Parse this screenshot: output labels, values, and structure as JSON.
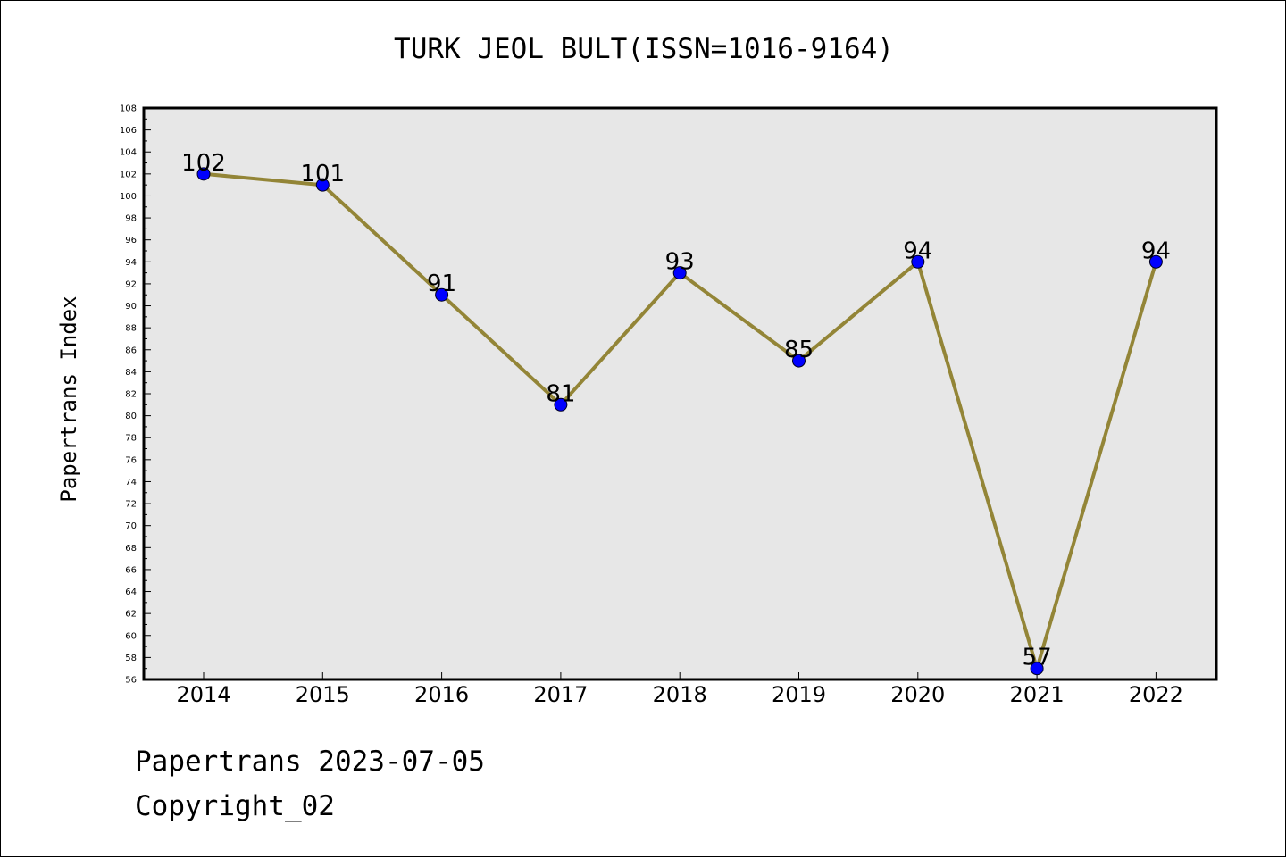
{
  "chart_data": {
    "type": "line",
    "title": "TURK JEOL BULT(ISSN=1016-9164)",
    "xlabel": "",
    "ylabel": "Papertrans Index",
    "categories": [
      "2014",
      "2015",
      "2016",
      "2017",
      "2018",
      "2019",
      "2020",
      "2021",
      "2022"
    ],
    "series": [
      {
        "values": [
          102,
          101,
          91,
          81,
          93,
          85,
          94,
          57,
          94
        ]
      }
    ],
    "data_labels": [
      "102",
      "101",
      "91",
      "81",
      "93",
      "85",
      "94",
      "57",
      "94"
    ],
    "ylim": [
      56,
      108
    ],
    "y_tick_step": 2,
    "grid": false,
    "line_color": "#938537",
    "marker_color": "#0000ff",
    "plot_background": "#e7e7e7"
  },
  "footer": {
    "line1": "Papertrans 2023-07-05",
    "line2": "Copyright_02"
  }
}
